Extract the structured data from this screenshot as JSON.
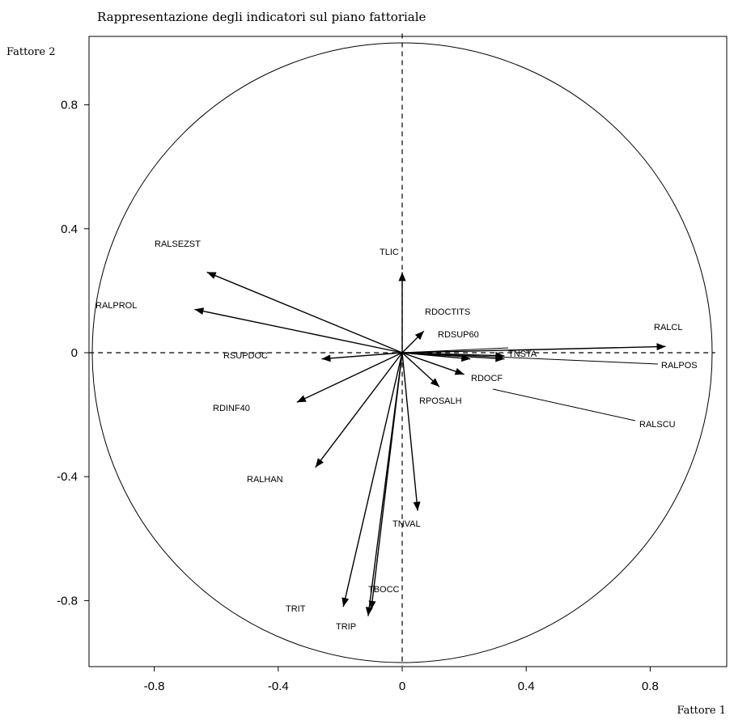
{
  "chart_data": {
    "type": "scatter",
    "title": "Rappresentazione degli indicatori sul piano fattoriale",
    "xlabel": "Fattore 1",
    "ylabel": "Fattore 2",
    "xlim": [
      -1.01,
      1.01
    ],
    "ylim": [
      -1.01,
      1.03
    ],
    "xticks": [
      -0.8,
      -0.4,
      0,
      0.4,
      0.8
    ],
    "xtick_labels": [
      "-0.8",
      "-0.4",
      "0",
      "0.4",
      "0.8"
    ],
    "yticks": [
      0.8,
      0.4,
      0,
      -0.4,
      -0.8
    ],
    "ytick_labels": [
      "0.8",
      "0.4",
      "0",
      "-0.4",
      "-0.8"
    ],
    "unit_circle": true,
    "zero_lines": true,
    "vectors": [
      {
        "name": "TLIC",
        "x": 0.0,
        "y": 0.26
      },
      {
        "name": "RALSEZST",
        "x": -0.63,
        "y": 0.26
      },
      {
        "name": "RALPROL",
        "x": -0.67,
        "y": 0.14
      },
      {
        "name": "RSUPDOC",
        "x": -0.26,
        "y": -0.02
      },
      {
        "name": "RDINF40",
        "x": -0.34,
        "y": -0.16
      },
      {
        "name": "RALHAN",
        "x": -0.28,
        "y": -0.37
      },
      {
        "name": "RDOCTITS",
        "x": 0.07,
        "y": 0.07
      },
      {
        "name": "RDSUP60",
        "x": 0.22,
        "y": -0.02
      },
      {
        "name": "TNSTA",
        "x": 0.33,
        "y": -0.01
      },
      {
        "name": "RALCL",
        "x": 0.85,
        "y": 0.02
      },
      {
        "name": "RALPOS",
        "x": 0.33,
        "y": -0.02
      },
      {
        "name": "RDOCF",
        "x": 0.2,
        "y": -0.07
      },
      {
        "name": "RALSCU",
        "x": 0.12,
        "y": -0.11
      },
      {
        "name": "RPOSALH",
        "x": 0.12,
        "y": -0.11
      },
      {
        "name": "TNVAL",
        "x": 0.05,
        "y": -0.51
      },
      {
        "name": "TBOCC",
        "x": -0.1,
        "y": -0.83
      },
      {
        "name": "TRIP",
        "x": -0.11,
        "y": -0.85
      },
      {
        "name": "TRIT",
        "x": -0.19,
        "y": -0.82
      }
    ]
  }
}
